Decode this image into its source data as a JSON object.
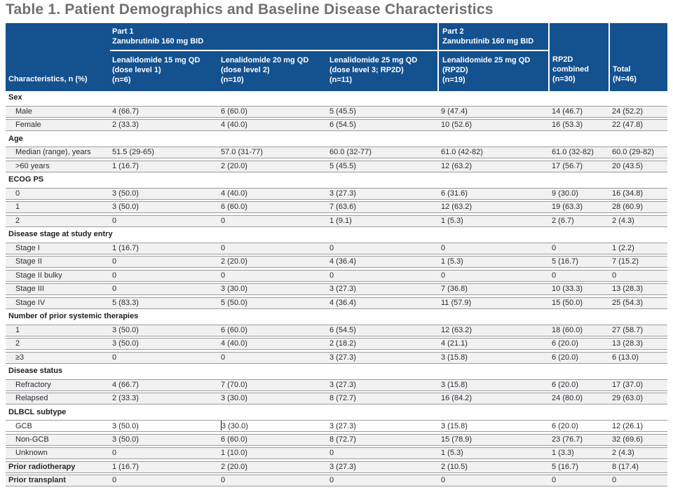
{
  "title": "Table 1. Patient Demographics and Baseline Disease Characteristics",
  "colors": {
    "header_bg": "#14518f",
    "header_text": "#ffffff",
    "row_shade": "#f1f1f2",
    "hairline": "#9a9c9f",
    "title_text": "#6e7073"
  },
  "header": {
    "characteristics_label": "Characteristics, n (%)",
    "part1_label": "Part 1\nZanubrutinib 160 mg BID",
    "part2_label": "Part 2\nZanubrutinib 160 mg BID",
    "dose_columns": [
      {
        "text": "Lenalidomide 15 mg QD\n(dose level 1)\n(n=6)"
      },
      {
        "text": "Lenalidomide 20 mg QD\n(dose level 2)\n(n=10)"
      },
      {
        "text": "Lenalidomide 25 mg QD\n(dose level 3; RP2D)\n(n=11)"
      },
      {
        "text": "Lenalidomide 25 mg QD\n(RP2D)\n(n=19)"
      }
    ],
    "rp2d_combined_label": "RP2D\ncombined\n(n=30)",
    "total_label": "Total\n(N=46)"
  },
  "table": {
    "rows": [
      {
        "type": "section",
        "label": "Sex"
      },
      {
        "type": "data",
        "label": "Male",
        "values": [
          "4 (66.7)",
          "6 (60.0)",
          "5 (45.5)",
          "9 (47.4)",
          "14 (46.7)",
          "24 (52.2)"
        ]
      },
      {
        "type": "data",
        "label": "Female",
        "values": [
          "2 (33.3)",
          "4 (40.0)",
          "6 (54.5)",
          "10 (52.6)",
          "16 (53.3)",
          "22 (47.8)"
        ]
      },
      {
        "type": "section",
        "label": "Age"
      },
      {
        "type": "data",
        "label": "Median (range), years",
        "values": [
          "51.5 (29-65)",
          "57.0 (31-77)",
          "60.0 (32-77)",
          "61.0 (42-82)",
          "61.0 (32-82)",
          "60.0 (29-82)"
        ]
      },
      {
        "type": "data",
        "label": ">60 years",
        "values": [
          "1 (16.7)",
          "2 (20.0)",
          "5 (45.5)",
          "12 (63.2)",
          "17 (56.7)",
          "20 (43.5)"
        ]
      },
      {
        "type": "section",
        "label": "ECOG PS"
      },
      {
        "type": "data",
        "label": "0",
        "values": [
          "3 (50.0)",
          "4 (40.0)",
          "3 (27.3)",
          "6 (31.6)",
          "9 (30.0)",
          "16 (34.8)"
        ]
      },
      {
        "type": "data",
        "label": "1",
        "values": [
          "3 (50.0)",
          "6 (60.0)",
          "7 (63.6)",
          "12 (63.2)",
          "19 (63.3)",
          "28 (60.9)"
        ]
      },
      {
        "type": "data",
        "label": "2",
        "values": [
          "0",
          "0",
          "1 (9.1)",
          "1 (5.3)",
          "2 (6.7)",
          "2 (4.3)"
        ]
      },
      {
        "type": "section",
        "label": "Disease stage at study entry"
      },
      {
        "type": "data",
        "label": "Stage I",
        "values": [
          "1 (16.7)",
          "0",
          "0",
          "0",
          "0",
          "1 (2.2)"
        ]
      },
      {
        "type": "data",
        "label": "Stage II",
        "values": [
          "0",
          "2 (20.0)",
          "4 (36.4)",
          "1 (5.3)",
          "5 (16.7)",
          "7 (15.2)"
        ]
      },
      {
        "type": "data",
        "label": "Stage II bulky",
        "values": [
          "0",
          "0",
          "0",
          "0",
          "0",
          "0"
        ]
      },
      {
        "type": "data",
        "label": "Stage III",
        "values": [
          "0",
          "3 (30.0)",
          "3 (27.3)",
          "7 (36.8)",
          "10 (33.3)",
          "13 (28.3)"
        ]
      },
      {
        "type": "data",
        "label": "Stage IV",
        "values": [
          "5 (83.3)",
          "5 (50.0)",
          "4 (36.4)",
          "11 (57.9)",
          "15 (50.0)",
          "25 (54.3)"
        ]
      },
      {
        "type": "section",
        "label": "Number of prior systemic therapies"
      },
      {
        "type": "data",
        "label": "1",
        "values": [
          "3 (50.0)",
          "6 (60.0)",
          "6 (54.5)",
          "12 (63.2)",
          "18 (60.0)",
          "27 (58.7)"
        ]
      },
      {
        "type": "data",
        "label": "2",
        "values": [
          "3 (50.0)",
          "4 (40.0)",
          "2 (18.2)",
          "4 (21.1)",
          "6 (20.0)",
          "13 (28.3)"
        ]
      },
      {
        "type": "data",
        "label": "≥3",
        "values": [
          "0",
          "0",
          "3 (27.3)",
          "3 (15.8)",
          "6 (20.0)",
          "6 (13.0)"
        ]
      },
      {
        "type": "section",
        "label": "Disease status"
      },
      {
        "type": "data",
        "label": "Refractory",
        "values": [
          "4 (66.7)",
          "7 (70.0)",
          "3 (27.3)",
          "3 (15.8)",
          "6 (20.0)",
          "17 (37.0)"
        ]
      },
      {
        "type": "data",
        "label": "Relapsed",
        "values": [
          "2 (33.3)",
          "3 (30.0)",
          "8 (72.7)",
          "16 (84.2)",
          "24 (80.0)",
          "29 (63.0)"
        ]
      },
      {
        "type": "section",
        "label": "DLBCL subtype"
      },
      {
        "type": "data",
        "label": "GCB",
        "editing": true,
        "caret_col": 1,
        "values": [
          "3 (50.0)",
          "3 (30.0)",
          "3 (27.3)",
          "3 (15.8)",
          "6 (20.0)",
          "12 (26.1)"
        ]
      },
      {
        "type": "data",
        "label": "Non-GCB",
        "values": [
          "3 (50.0)",
          "6 (60.0)",
          "8 (72.7)",
          "15 (78.9)",
          "23 (76.7)",
          "32 (69.6)"
        ]
      },
      {
        "type": "data",
        "label": "Unknown",
        "values": [
          "0",
          "1 (10.0)",
          "0",
          "1 (5.3)",
          "1 (3.3)",
          "2 (4.3)"
        ]
      },
      {
        "type": "data-bold",
        "label": "Prior radiotherapy",
        "values": [
          "1 (16.7)",
          "2 (20.0)",
          "3 (27.3)",
          "2 (10.5)",
          "5 (16.7)",
          "8 (17.4)"
        ]
      },
      {
        "type": "data-bold",
        "label": "Prior transplant",
        "values": [
          "0",
          "0",
          "0",
          "0",
          "0",
          "0"
        ]
      }
    ]
  }
}
